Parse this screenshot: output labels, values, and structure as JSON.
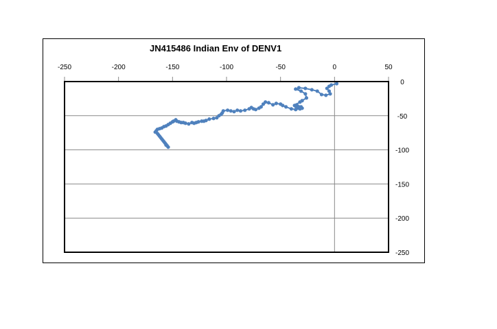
{
  "chart_data": {
    "type": "scatter",
    "title": "JN415486 Indian Env of DENV1",
    "xlabel": "",
    "ylabel": "",
    "xlim": [
      -250,
      50
    ],
    "ylim": [
      -250,
      0
    ],
    "xticks": [
      -250,
      -200,
      -150,
      -100,
      -50,
      0,
      50
    ],
    "yticks": [
      0,
      -50,
      -100,
      -150,
      -200,
      -250
    ],
    "x_axis_position": "top",
    "y_axis_position": "right",
    "grid": true,
    "legend": "none",
    "colors": {
      "series": "#4f81bd",
      "grid": "#888888",
      "axis": "#000000"
    },
    "series": [
      {
        "x": [
          2,
          -3,
          -5,
          -7,
          -5,
          -4,
          -8,
          -12,
          -16,
          -21,
          -27,
          -33,
          -36,
          -31,
          -27,
          -26,
          -30,
          -32,
          -37,
          -34,
          -31,
          -35,
          -36,
          -33,
          -30,
          -32,
          -36,
          -40,
          -45,
          -48,
          -50,
          -54,
          -57,
          -61,
          -64,
          -66,
          -68,
          -70,
          -73,
          -75,
          -77,
          -79,
          -83,
          -87,
          -90,
          -93,
          -96,
          -99,
          -103,
          -104,
          -105,
          -107,
          -109,
          -112,
          -116,
          -119,
          -121,
          -123,
          -126,
          -128,
          -130,
          -132,
          -135,
          -138,
          -140,
          -142,
          -144,
          -146,
          -147,
          -149,
          -150,
          -152,
          -154,
          -156,
          -158,
          -160,
          -162,
          -164,
          -165,
          -166,
          -164,
          -163,
          -162,
          -161,
          -160,
          -159,
          -158,
          -157,
          -156,
          -155,
          -154,
          -156
        ],
        "y": [
          -3,
          -5,
          -7,
          -10,
          -14,
          -18,
          -20,
          -19,
          -14,
          -12,
          -10,
          -9,
          -11,
          -14,
          -18,
          -24,
          -28,
          -30,
          -35,
          -38,
          -37,
          -34,
          -36,
          -37,
          -39,
          -40,
          -41,
          -40,
          -37,
          -35,
          -33,
          -32,
          -34,
          -31,
          -30,
          -33,
          -37,
          -39,
          -41,
          -40,
          -38,
          -40,
          -42,
          -43,
          -42,
          -44,
          -43,
          -42,
          -43,
          -46,
          -48,
          -50,
          -53,
          -54,
          -55,
          -57,
          -58,
          -58,
          -59,
          -60,
          -61,
          -60,
          -62,
          -61,
          -60,
          -60,
          -59,
          -58,
          -56,
          -58,
          -59,
          -61,
          -63,
          -65,
          -66,
          -68,
          -69,
          -70,
          -72,
          -74,
          -76,
          -78,
          -80,
          -82,
          -84,
          -86,
          -88,
          -90,
          -92,
          -94,
          -96,
          -93
        ]
      }
    ]
  }
}
